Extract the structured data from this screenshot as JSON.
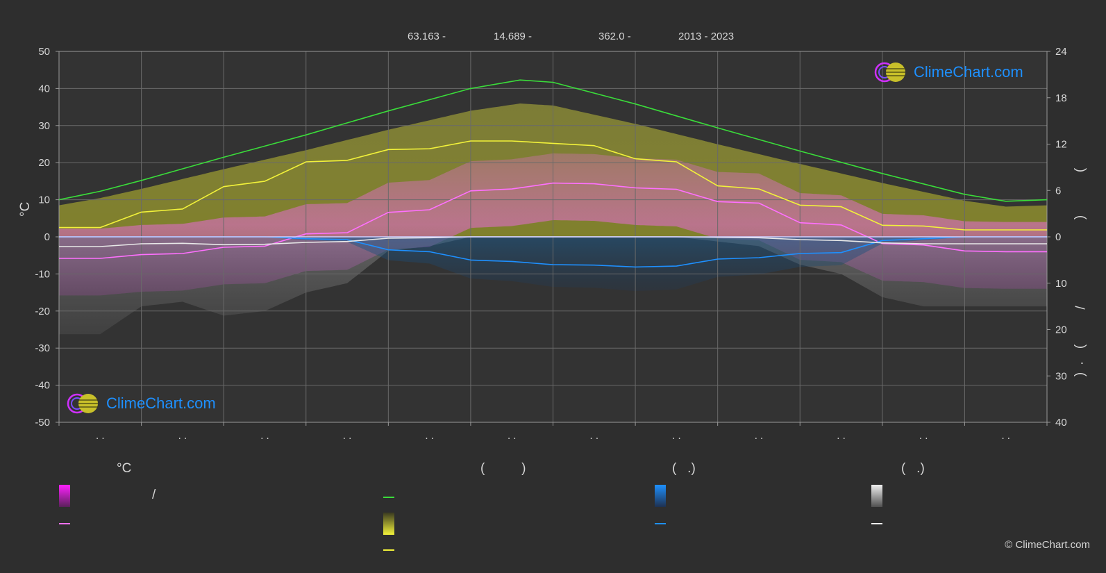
{
  "header": {
    "lat": "63.163 -",
    "lon": "14.689 -",
    "elevation": "362.0 -",
    "years": "2013 - 2023"
  },
  "axes": {
    "left_unit": "°C",
    "right_top_label": "(",
    "right_mid_label": ")",
    "right_lower_slash": "/",
    "right_lower_open": "(",
    "right_lower_dot": "·",
    "right_lower_close": ")"
  },
  "legend": {
    "temp_head": "°C",
    "daylight_head": "(          )",
    "rain_head": "(   .)",
    "snow_head": "(   .)",
    "temp_range_sep": "/"
  },
  "logo_text": "ClimeChart.com",
  "copyright": "© ClimeChart.com",
  "colors": {
    "daylight": "#3adc3a",
    "sunshine": "#f2f23a",
    "temp_mean": "#ff70ff",
    "temp_band": "#ff33ff",
    "rain": "#1e90ff",
    "snow": "#e8e8e8",
    "logo": "#1e90ff"
  },
  "chart_data": {
    "type": "line",
    "x_months": 12,
    "x_tick_labels": [
      ". .",
      ". .",
      ". .",
      ". .",
      ". .",
      ". .",
      ". .",
      ". .",
      ". .",
      ". .",
      ". .",
      ". ."
    ],
    "ylim_left": [
      -50,
      50
    ],
    "yticks_left": [
      50,
      40,
      30,
      20,
      10,
      0,
      -10,
      -20,
      -30,
      -40,
      -50
    ],
    "ylim_right_top": [
      0,
      24
    ],
    "yticks_right_top": [
      24,
      18,
      12,
      6,
      0
    ],
    "ylim_right_bottom": [
      0,
      40
    ],
    "yticks_right_bottom": [
      10,
      20,
      30,
      40
    ],
    "grid": true,
    "series": [
      {
        "key": "daylight",
        "axis": "right_hours",
        "x": [
          0,
          0.5,
          1,
          2,
          3,
          4,
          5,
          5.6,
          6,
          7,
          8,
          9,
          10,
          11,
          11.5,
          12
        ],
        "values": [
          4.8,
          5.9,
          7.3,
          10.3,
          13.2,
          16.3,
          19.2,
          20.3,
          20.0,
          17.2,
          14.1,
          11.1,
          8.2,
          5.5,
          4.6,
          4.8
        ]
      },
      {
        "key": "sunshine",
        "axis": "right_hours",
        "x": [
          0,
          0.5,
          1,
          1.5,
          2,
          2.5,
          3,
          3.5,
          4,
          4.5,
          5,
          5.5,
          6,
          6.5,
          7,
          7.5,
          8,
          8.5,
          9,
          9.5,
          10,
          10.5,
          11,
          11.5,
          12
        ],
        "values": [
          1.2,
          1.2,
          3.2,
          3.6,
          6.5,
          7.2,
          9.7,
          9.9,
          11.3,
          11.4,
          12.4,
          12.4,
          12.1,
          11.8,
          10.1,
          9.7,
          6.6,
          6.2,
          4.1,
          3.9,
          1.5,
          1.4,
          0.9,
          0.9,
          0.9
        ]
      },
      {
        "key": "temp_mean",
        "axis": "left",
        "x": [
          0,
          0.5,
          1,
          1.5,
          2,
          2.5,
          3,
          3.5,
          4,
          4.5,
          5,
          5.5,
          6,
          6.5,
          7,
          7.5,
          8,
          8.5,
          9,
          9.5,
          10,
          10.5,
          11,
          11.5,
          12
        ],
        "values": [
          -5.8,
          -5.8,
          -4.8,
          -4.5,
          -2.8,
          -2.5,
          0.8,
          1.1,
          6.6,
          7.3,
          12.4,
          12.9,
          14.5,
          14.3,
          13.2,
          12.8,
          9.5,
          9.1,
          3.8,
          3.2,
          -1.8,
          -2.2,
          -3.8,
          -4.0,
          -4.0
        ]
      },
      {
        "key": "rain",
        "axis": "right_mm",
        "x": [
          0,
          0.5,
          1,
          1.5,
          2,
          2.5,
          3,
          3.5,
          4,
          4.5,
          5,
          5.5,
          6,
          6.5,
          7,
          7.5,
          8,
          8.5,
          9,
          9.5,
          10,
          10.5,
          11,
          11.5,
          12
        ],
        "values": [
          0,
          0,
          0,
          0,
          0,
          0,
          0.4,
          0.6,
          2.8,
          3.2,
          5.0,
          5.3,
          6.0,
          6.1,
          6.5,
          6.3,
          4.8,
          4.5,
          3.6,
          3.4,
          0.8,
          0.4,
          0,
          0,
          0
        ]
      },
      {
        "key": "snow",
        "axis": "right_mm",
        "x": [
          0,
          0.5,
          1,
          1.5,
          2,
          2.5,
          3,
          3.5,
          4,
          4.5,
          5,
          5.5,
          6,
          6.5,
          7,
          7.5,
          8,
          8.5,
          9,
          9.5,
          10,
          10.5,
          11,
          11.5,
          12
        ],
        "values": [
          2.1,
          2.1,
          1.5,
          1.4,
          1.7,
          1.6,
          1.2,
          1.0,
          0.3,
          0.2,
          0,
          0,
          0,
          0,
          0,
          0,
          0.1,
          0.2,
          0.6,
          0.8,
          1.3,
          1.5,
          1.5,
          1.5,
          1.5
        ]
      }
    ]
  }
}
